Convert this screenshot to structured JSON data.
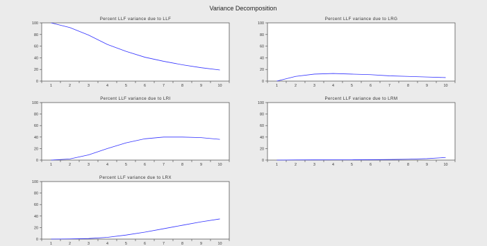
{
  "title": "Variance Decomposition",
  "colors": {
    "series": "#3030ff",
    "frame": "#444444",
    "backdrop": "#ebebeb"
  },
  "chart_data": [
    {
      "type": "line",
      "title": "Percent LLF variance due to LLF",
      "x": [
        1,
        2,
        3,
        4,
        5,
        6,
        7,
        8,
        9,
        10
      ],
      "series": [
        {
          "values": [
            100,
            92,
            79,
            63,
            51,
            41,
            34,
            28,
            23,
            19
          ]
        }
      ],
      "ylim": [
        0,
        100
      ],
      "yticks": [
        0,
        20,
        40,
        60,
        80,
        100
      ],
      "xticks": [
        1,
        2,
        3,
        4,
        5,
        6,
        7,
        8,
        9,
        10
      ],
      "grid": false
    },
    {
      "type": "line",
      "title": "Percent LLF variance due to LRG",
      "x": [
        1,
        2,
        3,
        4,
        5,
        6,
        7,
        8,
        9,
        10
      ],
      "series": [
        {
          "values": [
            0,
            8,
            12,
            13,
            12,
            11,
            9,
            8,
            7,
            6
          ]
        }
      ],
      "ylim": [
        0,
        100
      ],
      "yticks": [
        0,
        20,
        40,
        60,
        80,
        100
      ],
      "xticks": [
        1,
        2,
        3,
        4,
        5,
        6,
        7,
        8,
        9,
        10
      ],
      "grid": false
    },
    {
      "type": "line",
      "title": "Percent LLF variance due to LRI",
      "x": [
        1,
        2,
        3,
        4,
        5,
        6,
        7,
        8,
        9,
        10
      ],
      "series": [
        {
          "values": [
            0,
            2,
            9,
            20,
            30,
            37,
            40,
            40,
            39,
            36
          ]
        }
      ],
      "ylim": [
        0,
        100
      ],
      "yticks": [
        0,
        20,
        40,
        60,
        80,
        100
      ],
      "xticks": [
        1,
        2,
        3,
        4,
        5,
        6,
        7,
        8,
        9,
        10
      ],
      "grid": false
    },
    {
      "type": "line",
      "title": "Percent LLF variance due to LRM",
      "x": [
        1,
        2,
        3,
        4,
        5,
        6,
        7,
        8,
        9,
        10
      ],
      "series": [
        {
          "values": [
            0,
            0.3,
            0.4,
            0.5,
            0.5,
            0.7,
            1,
            1.5,
            2.5,
            4.5
          ]
        }
      ],
      "ylim": [
        0,
        100
      ],
      "yticks": [
        0,
        20,
        40,
        60,
        80,
        100
      ],
      "xticks": [
        1,
        2,
        3,
        4,
        5,
        6,
        7,
        8,
        9,
        10
      ],
      "grid": false
    },
    {
      "type": "line",
      "title": "Percent LLF variance due to LRX",
      "x": [
        1,
        2,
        3,
        4,
        5,
        6,
        7,
        8,
        9,
        10
      ],
      "series": [
        {
          "values": [
            0,
            0.3,
            1,
            3,
            7,
            12,
            18,
            24,
            30,
            35
          ]
        }
      ],
      "ylim": [
        0,
        100
      ],
      "yticks": [
        0,
        20,
        40,
        60,
        80,
        100
      ],
      "xticks": [
        1,
        2,
        3,
        4,
        5,
        6,
        7,
        8,
        9,
        10
      ],
      "grid": false
    }
  ]
}
